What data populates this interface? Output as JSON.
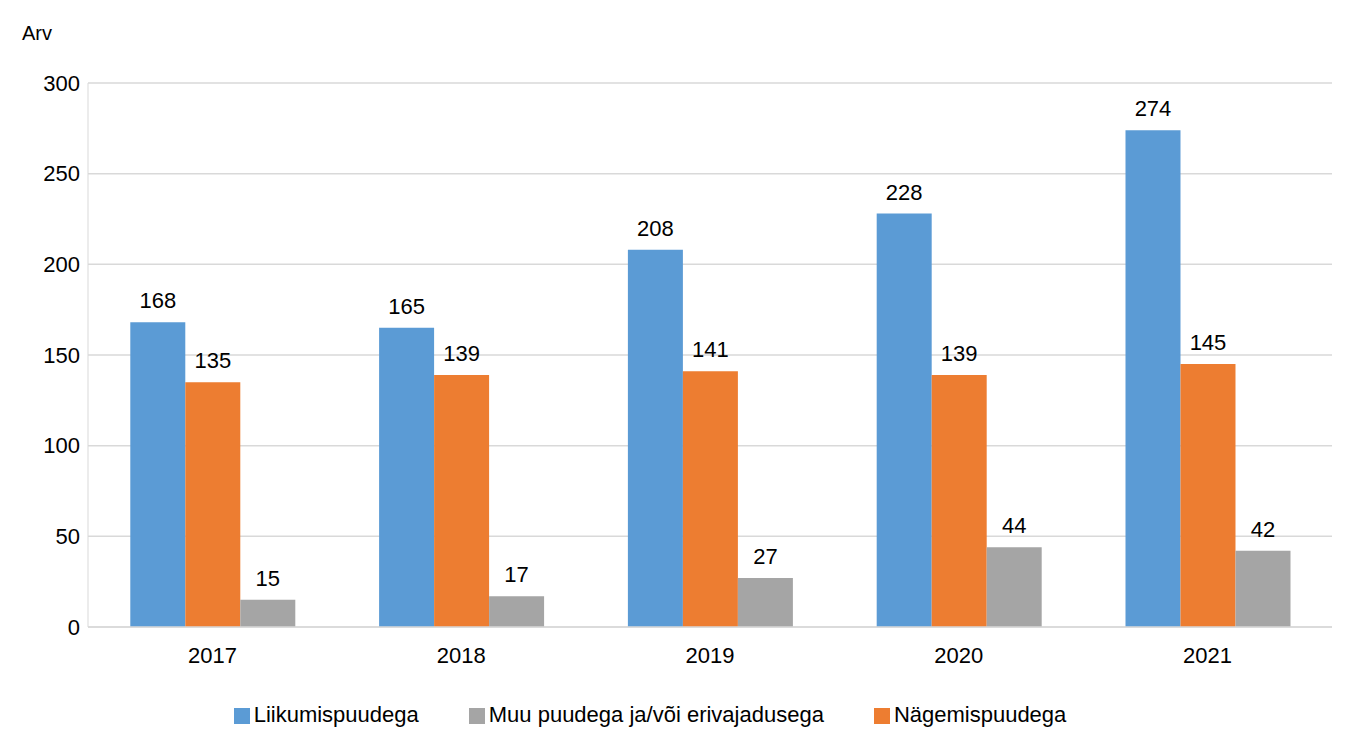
{
  "chart_data": {
    "type": "bar",
    "y_label": "Arv",
    "categories": [
      "2017",
      "2018",
      "2019",
      "2020",
      "2021"
    ],
    "series": [
      {
        "name": "Liikumispuudega",
        "color": "#5b9bd5",
        "values": [
          168,
          165,
          208,
          228,
          274
        ]
      },
      {
        "name": "Nägemispuudega",
        "color": "#ed7d31",
        "values": [
          135,
          139,
          141,
          139,
          145
        ]
      },
      {
        "name": "Muu puudega ja/või erivajadusega",
        "color": "#a5a5a5",
        "values": [
          15,
          17,
          27,
          44,
          42
        ]
      }
    ],
    "ylim": [
      0,
      300
    ],
    "yticks": [
      0,
      50,
      100,
      150,
      200,
      250,
      300
    ],
    "grid": true,
    "legend": "bottom",
    "data_labels": true
  }
}
